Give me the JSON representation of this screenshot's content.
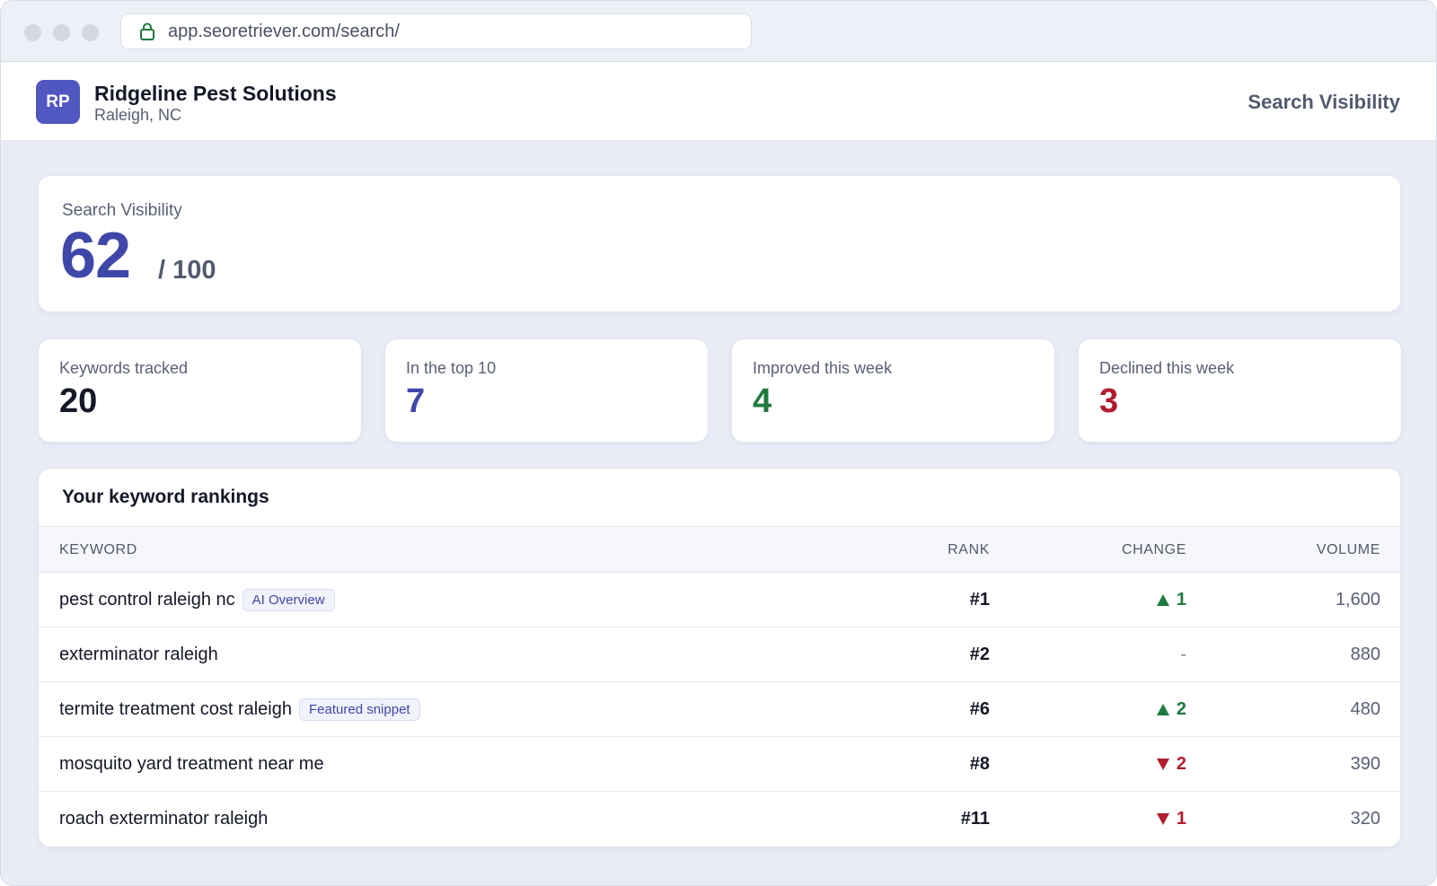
{
  "browser": {
    "url": "app.seoretriever.com/search/"
  },
  "header": {
    "avatar_initials": "RP",
    "business_name": "Ridgeline Pest Solutions",
    "location": "Raleigh, NC",
    "page_label": "Search Visibility"
  },
  "score": {
    "label": "Search Visibility",
    "value": "62",
    "max": "/ 100"
  },
  "stats": [
    {
      "label": "Keywords tracked",
      "value": "20",
      "color": "#141827"
    },
    {
      "label": "In the top 10",
      "value": "7",
      "color": "#3f47a8"
    },
    {
      "label": "Improved this week",
      "value": "4",
      "color": "#1f7a3e"
    },
    {
      "label": "Declined this week",
      "value": "3",
      "color": "#b01e2e"
    }
  ],
  "rankings": {
    "title": "Your keyword rankings",
    "columns": {
      "keyword": "KEYWORD",
      "rank": "RANK",
      "change": "CHANGE",
      "volume": "VOLUME"
    },
    "rows": [
      {
        "keyword": "pest control raleigh nc",
        "badge": "AI Overview",
        "rank": "#1",
        "change": "1",
        "direction": "up",
        "volume": "1,600"
      },
      {
        "keyword": "exterminator raleigh",
        "badge": "",
        "rank": "#2",
        "change": "-",
        "direction": "flat",
        "volume": "880"
      },
      {
        "keyword": "termite treatment cost raleigh",
        "badge": "Featured snippet",
        "rank": "#6",
        "change": "2",
        "direction": "up",
        "volume": "480"
      },
      {
        "keyword": "mosquito yard treatment near me",
        "badge": "",
        "rank": "#8",
        "change": "2",
        "direction": "down",
        "volume": "390"
      },
      {
        "keyword": "roach exterminator raleigh",
        "badge": "",
        "rank": "#11",
        "change": "1",
        "direction": "down",
        "volume": "320"
      }
    ]
  },
  "icons": {
    "lock": "lock-icon",
    "up": "triangle-up-icon",
    "down": "triangle-down-icon"
  }
}
